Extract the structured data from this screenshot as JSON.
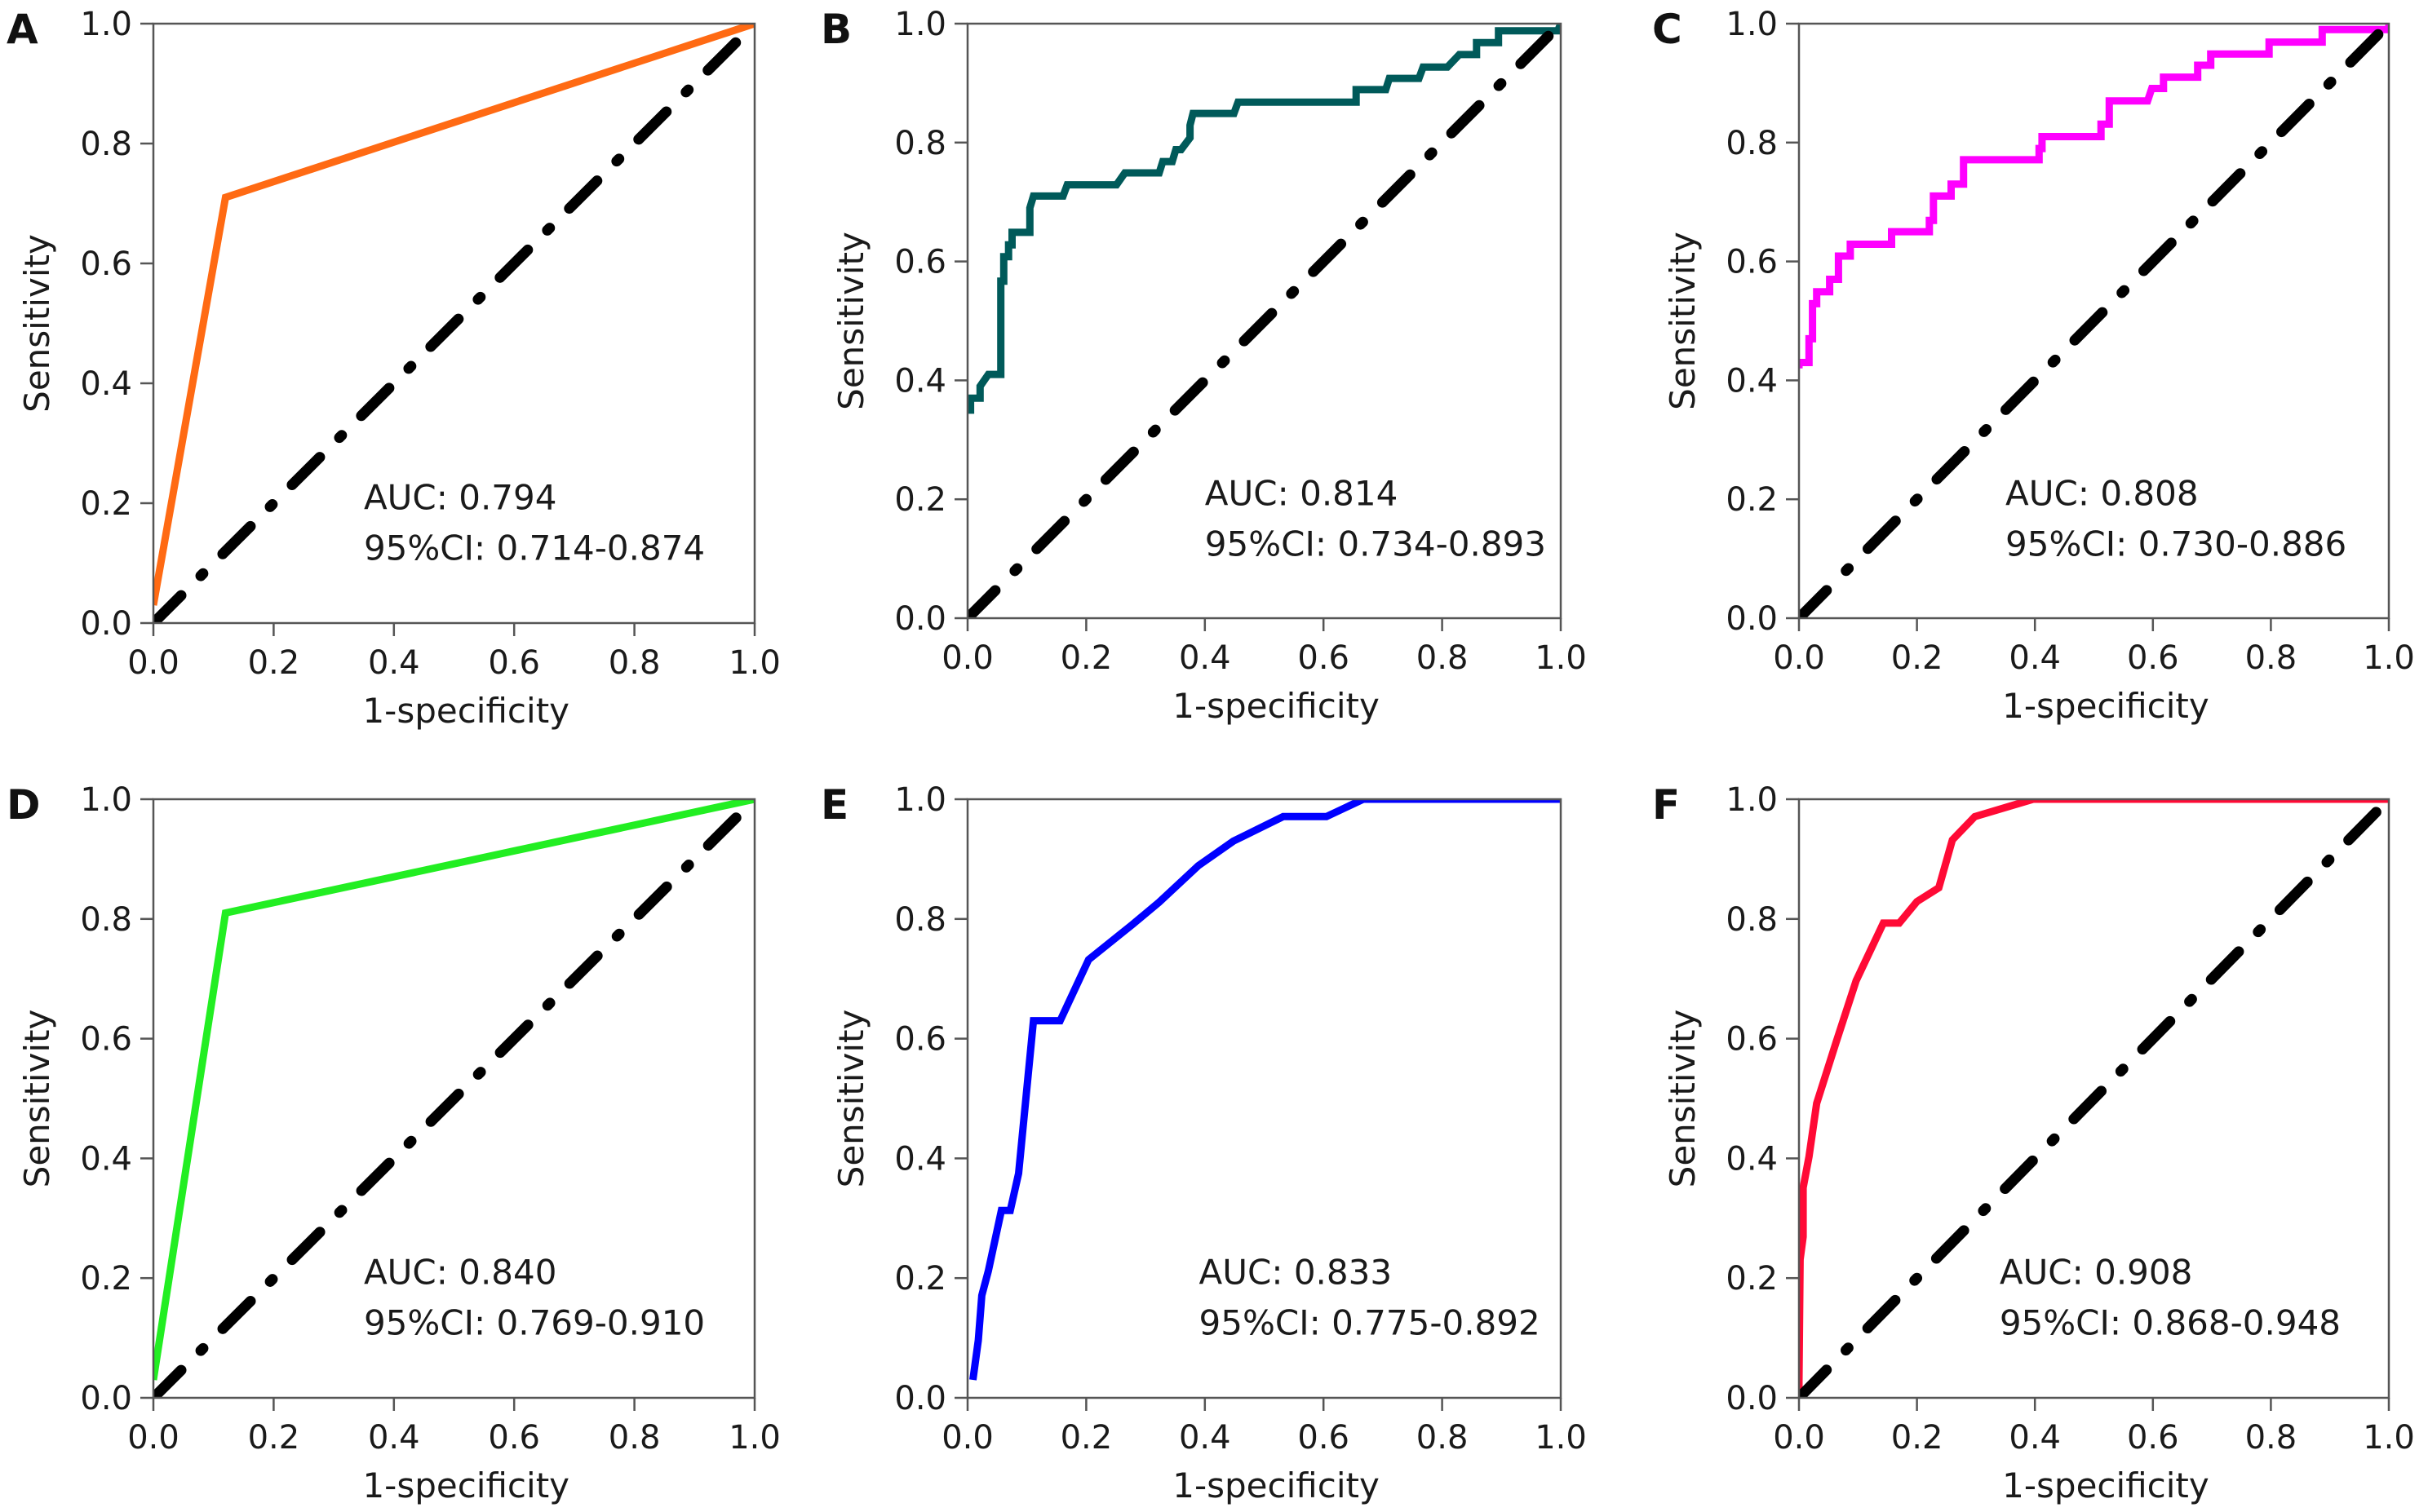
{
  "chart_data": [
    {
      "type": "line",
      "panel": "A",
      "title": "",
      "xlabel": "1-specificity",
      "ylabel": "Sensitivity",
      "xlim": [
        0,
        1
      ],
      "ylim": [
        0,
        1
      ],
      "xticks": [
        "0.0",
        "0.2",
        "0.4",
        "0.6",
        "0.8",
        "1.0"
      ],
      "yticks": [
        "0.0",
        "0.2",
        "0.4",
        "0.6",
        "0.8",
        "1.0"
      ],
      "color": "#ff6a13",
      "auc_text": "AUC: 0.794",
      "ci_text": "95%CI: 0.714-0.874",
      "series": [
        {
          "name": "ROC",
          "points": [
            [
              0,
              0.03
            ],
            [
              0.12,
              0.71
            ],
            [
              1,
              1
            ]
          ]
        },
        {
          "name": "reference",
          "points": [
            [
              0,
              0
            ],
            [
              1,
              1
            ]
          ]
        }
      ]
    },
    {
      "type": "line",
      "panel": "B",
      "title": "",
      "xlabel": "1-specificity",
      "ylabel": "Sensitivity",
      "xlim": [
        0,
        1
      ],
      "ylim": [
        0,
        1
      ],
      "xticks": [
        "0.0",
        "0.2",
        "0.4",
        "0.6",
        "0.8",
        "1.0"
      ],
      "yticks": [
        "0.0",
        "0.2",
        "0.4",
        "0.6",
        "0.8",
        "1.0"
      ],
      "color": "#005a5a",
      "auc_text": "AUC: 0.814",
      "ci_text": "95%CI: 0.734-0.893",
      "series": [
        {
          "name": "ROC",
          "points": [
            [
              0,
              0.35
            ],
            [
              0.005,
              0.35
            ],
            [
              0.005,
              0.37
            ],
            [
              0.021,
              0.37
            ],
            [
              0.021,
              0.39
            ],
            [
              0.035,
              0.41
            ],
            [
              0.056,
              0.41
            ],
            [
              0.056,
              0.567
            ],
            [
              0.061,
              0.567
            ],
            [
              0.061,
              0.608
            ],
            [
              0.069,
              0.608
            ],
            [
              0.069,
              0.628
            ],
            [
              0.075,
              0.628
            ],
            [
              0.075,
              0.649
            ],
            [
              0.105,
              0.649
            ],
            [
              0.105,
              0.69
            ],
            [
              0.111,
              0.71
            ],
            [
              0.161,
              0.71
            ],
            [
              0.168,
              0.729
            ],
            [
              0.251,
              0.729
            ],
            [
              0.265,
              0.749
            ],
            [
              0.323,
              0.749
            ],
            [
              0.329,
              0.768
            ],
            [
              0.345,
              0.768
            ],
            [
              0.351,
              0.788
            ],
            [
              0.36,
              0.788
            ],
            [
              0.375,
              0.808
            ],
            [
              0.375,
              0.829
            ],
            [
              0.38,
              0.849
            ],
            [
              0.449,
              0.849
            ],
            [
              0.456,
              0.868
            ],
            [
              0.655,
              0.868
            ],
            [
              0.655,
              0.889
            ],
            [
              0.705,
              0.889
            ],
            [
              0.711,
              0.908
            ],
            [
              0.761,
              0.908
            ],
            [
              0.768,
              0.927
            ],
            [
              0.809,
              0.927
            ],
            [
              0.829,
              0.948
            ],
            [
              0.858,
              0.948
            ],
            [
              0.858,
              0.968
            ],
            [
              0.895,
              0.968
            ],
            [
              0.895,
              0.988
            ],
            [
              0.995,
              0.988
            ],
            [
              1,
              1
            ]
          ]
        },
        {
          "name": "reference",
          "points": [
            [
              0,
              0
            ],
            [
              1,
              1
            ]
          ]
        }
      ]
    },
    {
      "type": "line",
      "panel": "C",
      "title": "",
      "xlabel": "1-specificity",
      "ylabel": "Sensitivity",
      "xlim": [
        0,
        1
      ],
      "ylim": [
        0,
        1
      ],
      "xticks": [
        "0.0",
        "0.2",
        "0.4",
        "0.6",
        "0.8",
        "1.0"
      ],
      "yticks": [
        "0.0",
        "0.2",
        "0.4",
        "0.6",
        "0.8",
        "1.0"
      ],
      "color": "#ff00ff",
      "auc_text": "AUC: 0.808",
      "ci_text": "95%CI: 0.730-0.886",
      "series": [
        {
          "name": "ROC",
          "points": [
            [
              0,
              0.42
            ],
            [
              0,
              0.43
            ],
            [
              0.017,
              0.43
            ],
            [
              0.017,
              0.47
            ],
            [
              0.023,
              0.47
            ],
            [
              0.023,
              0.529
            ],
            [
              0.03,
              0.529
            ],
            [
              0.03,
              0.549
            ],
            [
              0.052,
              0.549
            ],
            [
              0.052,
              0.57
            ],
            [
              0.067,
              0.57
            ],
            [
              0.067,
              0.609
            ],
            [
              0.087,
              0.609
            ],
            [
              0.087,
              0.629
            ],
            [
              0.157,
              0.629
            ],
            [
              0.157,
              0.65
            ],
            [
              0.221,
              0.65
            ],
            [
              0.221,
              0.669
            ],
            [
              0.228,
              0.669
            ],
            [
              0.228,
              0.71
            ],
            [
              0.258,
              0.71
            ],
            [
              0.258,
              0.73
            ],
            [
              0.279,
              0.73
            ],
            [
              0.279,
              0.771
            ],
            [
              0.407,
              0.771
            ],
            [
              0.407,
              0.79
            ],
            [
              0.412,
              0.79
            ],
            [
              0.412,
              0.81
            ],
            [
              0.512,
              0.81
            ],
            [
              0.512,
              0.831
            ],
            [
              0.526,
              0.831
            ],
            [
              0.526,
              0.87
            ],
            [
              0.591,
              0.87
            ],
            [
              0.598,
              0.891
            ],
            [
              0.618,
              0.891
            ],
            [
              0.618,
              0.91
            ],
            [
              0.676,
              0.91
            ],
            [
              0.676,
              0.93
            ],
            [
              0.698,
              0.93
            ],
            [
              0.698,
              0.949
            ],
            [
              0.797,
              0.949
            ],
            [
              0.797,
              0.969
            ],
            [
              0.887,
              0.969
            ],
            [
              0.887,
              0.99
            ],
            [
              1,
              0.99
            ],
            [
              1,
              1
            ]
          ]
        },
        {
          "name": "reference",
          "points": [
            [
              0,
              0
            ],
            [
              1,
              1
            ]
          ]
        }
      ]
    },
    {
      "type": "line",
      "panel": "D",
      "title": "",
      "xlabel": "1-specificity",
      "ylabel": "Sensitivity",
      "xlim": [
        0,
        1
      ],
      "ylim": [
        0,
        1
      ],
      "xticks": [
        "0.0",
        "0.2",
        "0.4",
        "0.6",
        "0.8",
        "1.0"
      ],
      "yticks": [
        "0.0",
        "0.2",
        "0.4",
        "0.6",
        "0.8",
        "1.0"
      ],
      "color": "#22ee22",
      "auc_text": "AUC: 0.840",
      "ci_text": "95%CI: 0.769-0.910",
      "series": [
        {
          "name": "ROC",
          "points": [
            [
              0,
              0.03
            ],
            [
              0.12,
              0.81
            ],
            [
              1,
              1
            ]
          ]
        },
        {
          "name": "reference",
          "points": [
            [
              0,
              0
            ],
            [
              1,
              1
            ]
          ]
        }
      ]
    },
    {
      "type": "line",
      "panel": "E",
      "title": "",
      "xlabel": "1-specificity",
      "ylabel": "Sensitivity",
      "xlim": [
        0,
        1
      ],
      "ylim": [
        0,
        1
      ],
      "xticks": [
        "0.0",
        "0.2",
        "0.4",
        "0.6",
        "0.8",
        "1.0"
      ],
      "yticks": [
        "0.0",
        "0.2",
        "0.4",
        "0.6",
        "0.8",
        "1.0"
      ],
      "color": "#0000ff",
      "auc_text": "AUC: 0.833",
      "ci_text": "95%CI: 0.775-0.892",
      "series": [
        {
          "name": "ROC",
          "points": [
            [
              0.009,
              0.03
            ],
            [
              0.018,
              0.096
            ],
            [
              0.024,
              0.171
            ],
            [
              0.035,
              0.212
            ],
            [
              0.057,
              0.313
            ],
            [
              0.072,
              0.313
            ],
            [
              0.086,
              0.375
            ],
            [
              0.111,
              0.63
            ],
            [
              0.156,
              0.63
            ],
            [
              0.204,
              0.732
            ],
            [
              0.277,
              0.79
            ],
            [
              0.323,
              0.828
            ],
            [
              0.389,
              0.889
            ],
            [
              0.448,
              0.93
            ],
            [
              0.532,
              0.971
            ],
            [
              0.605,
              0.971
            ],
            [
              0.667,
              1.0
            ],
            [
              1,
              1
            ]
          ]
        }
      ]
    },
    {
      "type": "line",
      "panel": "F",
      "title": "",
      "xlabel": "1-specificity",
      "ylabel": "Sensitivity",
      "xlim": [
        0,
        1
      ],
      "ylim": [
        0,
        1
      ],
      "xticks": [
        "0.0",
        "0.2",
        "0.4",
        "0.6",
        "0.8",
        "1.0"
      ],
      "yticks": [
        "0.0",
        "0.2",
        "0.4",
        "0.6",
        "0.8",
        "1.0"
      ],
      "color": "#ff0a35",
      "auc_text": "AUC: 0.908",
      "ci_text": "95%CI: 0.868-0.948",
      "series": [
        {
          "name": "ROC",
          "points": [
            [
              0,
              0
            ],
            [
              0,
              0.026
            ],
            [
              0.002,
              0.231
            ],
            [
              0.007,
              0.269
            ],
            [
              0.007,
              0.351
            ],
            [
              0.017,
              0.403
            ],
            [
              0.03,
              0.492
            ],
            [
              0.063,
              0.594
            ],
            [
              0.097,
              0.697
            ],
            [
              0.143,
              0.793
            ],
            [
              0.17,
              0.793
            ],
            [
              0.2,
              0.829
            ],
            [
              0.237,
              0.852
            ],
            [
              0.26,
              0.932
            ],
            [
              0.298,
              0.971
            ],
            [
              0.397,
              1.0
            ],
            [
              1,
              1
            ]
          ]
        },
        {
          "name": "reference",
          "points": [
            [
              0,
              0
            ],
            [
              1,
              1
            ]
          ]
        }
      ]
    }
  ]
}
